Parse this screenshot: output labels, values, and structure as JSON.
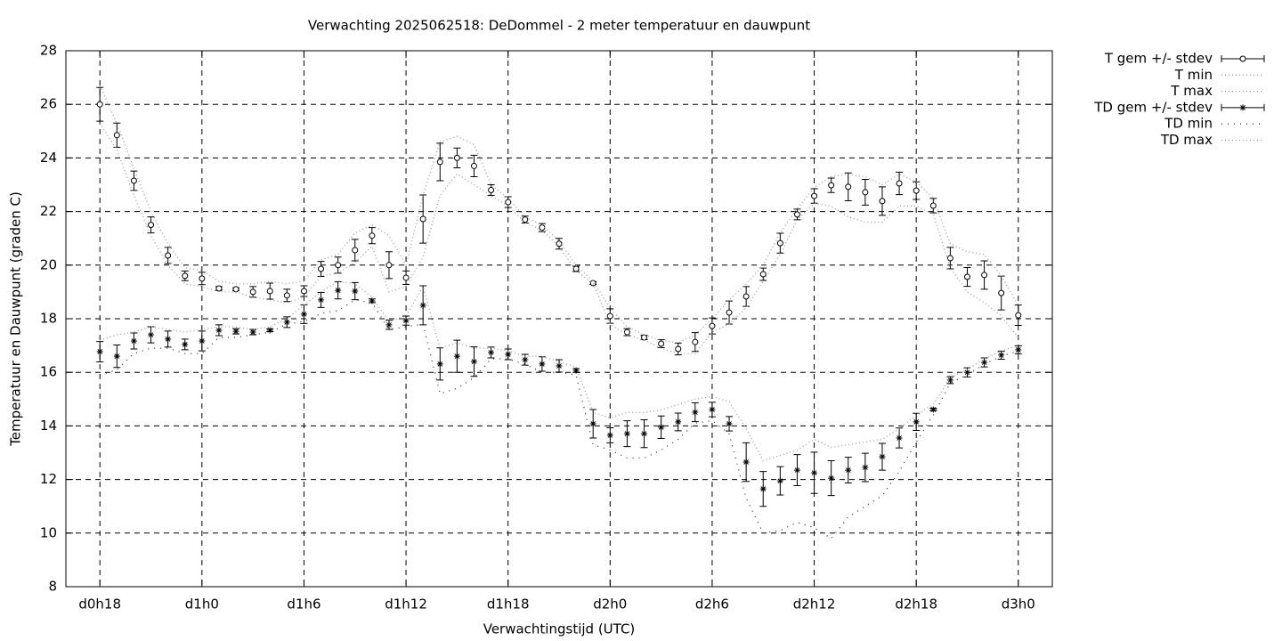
{
  "chart_data": {
    "type": "errorbar_line",
    "title": "Verwachting 2025062518: DeDommel - 2 meter temperatuur en dauwpunt",
    "xlabel": "Verwachtingstijd (UTC)",
    "ylabel": "Temperatuur en Dauwpunt (graden C)",
    "x": [
      18,
      19,
      20,
      21,
      22,
      23,
      24,
      25,
      26,
      27,
      28,
      29,
      30,
      31,
      32,
      33,
      34,
      35,
      36,
      37,
      38,
      39,
      40,
      41,
      42,
      43,
      44,
      45,
      46,
      47,
      48,
      49,
      50,
      51,
      52,
      53,
      54,
      55,
      56,
      57,
      58,
      59,
      60,
      61,
      62,
      63,
      64,
      65,
      66,
      67,
      68,
      69,
      70,
      71,
      72
    ],
    "xlim": [
      16,
      74
    ],
    "xticks": [
      {
        "value": 18,
        "label": "d0h18"
      },
      {
        "value": 24,
        "label": "d1h0"
      },
      {
        "value": 30,
        "label": "d1h6"
      },
      {
        "value": 36,
        "label": "d1h12"
      },
      {
        "value": 42,
        "label": "d1h18"
      },
      {
        "value": 48,
        "label": "d2h0"
      },
      {
        "value": 54,
        "label": "d2h6"
      },
      {
        "value": 60,
        "label": "d2h12"
      },
      {
        "value": 66,
        "label": "d2h18"
      },
      {
        "value": 72,
        "label": "d3h0"
      }
    ],
    "ylim": [
      8,
      28
    ],
    "yticks": [
      8,
      10,
      12,
      14,
      16,
      18,
      20,
      22,
      24,
      26,
      28
    ],
    "grid": true,
    "legend": "outside-right",
    "series": [
      {
        "name": "T gem +/- stdev",
        "color": "#000000",
        "marker": "circle",
        "values": [
          26.0,
          24.85,
          23.15,
          21.5,
          20.36,
          19.6,
          19.5,
          19.13,
          19.1,
          19.0,
          19.03,
          18.87,
          19.03,
          19.86,
          20.0,
          20.56,
          21.1,
          20.0,
          19.53,
          21.72,
          23.85,
          24.0,
          23.7,
          22.8,
          22.35,
          21.7,
          21.4,
          20.8,
          19.86,
          19.33,
          18.1,
          17.5,
          17.3,
          17.07,
          16.87,
          17.13,
          17.73,
          18.23,
          18.83,
          19.66,
          20.82,
          21.89,
          22.58,
          22.98,
          22.92,
          22.72,
          22.39,
          23.05,
          22.78,
          22.22,
          20.26,
          19.56,
          19.63,
          18.96,
          18.13
        ],
        "errors": [
          0.63,
          0.45,
          0.36,
          0.3,
          0.3,
          0.18,
          0.23,
          0.07,
          0.05,
          0.2,
          0.3,
          0.23,
          0.2,
          0.28,
          0.3,
          0.4,
          0.3,
          0.5,
          0.25,
          0.9,
          0.7,
          0.37,
          0.4,
          0.2,
          0.2,
          0.13,
          0.15,
          0.2,
          0.1,
          0.05,
          0.27,
          0.13,
          0.08,
          0.15,
          0.22,
          0.35,
          0.3,
          0.43,
          0.37,
          0.23,
          0.37,
          0.2,
          0.27,
          0.27,
          0.52,
          0.48,
          0.53,
          0.42,
          0.33,
          0.27,
          0.4,
          0.35,
          0.53,
          0.63,
          0.38
        ]
      },
      {
        "name": "T min",
        "color": "#999999",
        "dash": "1,3",
        "values": [
          25.3,
          24.3,
          22.6,
          21.1,
          20.0,
          19.3,
          19.2,
          19.0,
          19.0,
          18.8,
          18.7,
          18.6,
          18.8,
          19.6,
          19.7,
          20.1,
          20.7,
          19.0,
          19.2,
          20.3,
          22.6,
          23.4,
          23.0,
          22.6,
          22.2,
          21.6,
          21.3,
          20.7,
          19.8,
          19.3,
          17.8,
          17.4,
          17.2,
          16.9,
          16.7,
          16.7,
          17.5,
          17.8,
          18.4,
          19.4,
          20.4,
          21.7,
          22.3,
          22.2,
          21.8,
          21.6,
          21.6,
          22.2,
          22.2,
          21.9,
          19.9,
          19.0,
          18.6,
          18.1,
          17.3
        ]
      },
      {
        "name": "T max",
        "color": "#999999",
        "dash": "1,3",
        "values": [
          26.7,
          25.3,
          23.6,
          22.0,
          20.8,
          19.9,
          19.8,
          19.4,
          19.3,
          19.3,
          19.4,
          19.3,
          19.4,
          20.2,
          20.4,
          21.2,
          21.5,
          21.1,
          20.0,
          22.6,
          24.6,
          24.8,
          24.5,
          23.0,
          22.5,
          21.8,
          21.5,
          20.9,
          20.0,
          19.4,
          18.4,
          17.7,
          17.4,
          17.2,
          17.1,
          17.4,
          18.0,
          18.7,
          19.3,
          20.0,
          21.2,
          22.1,
          22.9,
          23.3,
          23.4,
          23.3,
          23.0,
          23.4,
          23.1,
          22.5,
          20.8,
          20.5,
          20.4,
          19.6,
          18.5
        ]
      },
      {
        "name": "TD gem +/- stdev",
        "color": "#000000",
        "marker": "star",
        "values": [
          16.77,
          16.6,
          17.17,
          17.4,
          17.24,
          17.04,
          17.17,
          17.57,
          17.53,
          17.5,
          17.57,
          17.87,
          18.17,
          18.7,
          19.06,
          19.03,
          18.67,
          17.77,
          17.93,
          18.5,
          16.31,
          16.6,
          16.4,
          16.74,
          16.67,
          16.47,
          16.31,
          16.24,
          16.07,
          14.08,
          13.65,
          13.71,
          13.71,
          13.95,
          14.15,
          14.51,
          14.61,
          14.08,
          12.65,
          11.65,
          11.95,
          12.35,
          12.25,
          12.05,
          12.35,
          12.45,
          12.85,
          13.55,
          14.15,
          14.61,
          15.71,
          16.0,
          16.37,
          16.64,
          16.84
        ],
        "errors": [
          0.38,
          0.42,
          0.3,
          0.3,
          0.3,
          0.2,
          0.37,
          0.2,
          0.1,
          0.1,
          0.05,
          0.2,
          0.35,
          0.28,
          0.32,
          0.32,
          0.07,
          0.17,
          0.17,
          0.73,
          0.6,
          0.6,
          0.55,
          0.2,
          0.2,
          0.2,
          0.27,
          0.23,
          0.07,
          0.53,
          0.28,
          0.48,
          0.52,
          0.42,
          0.33,
          0.35,
          0.27,
          0.27,
          0.72,
          0.65,
          0.53,
          0.58,
          0.77,
          0.65,
          0.48,
          0.53,
          0.5,
          0.37,
          0.32,
          0.05,
          0.13,
          0.17,
          0.17,
          0.15,
          0.15
        ]
      },
      {
        "name": "TD min",
        "color": "#333333",
        "dash": "1,6",
        "values": [
          15.9,
          16.1,
          16.7,
          16.9,
          16.9,
          16.7,
          16.7,
          17.3,
          17.3,
          17.4,
          17.5,
          17.8,
          17.9,
          18.2,
          18.3,
          18.7,
          18.6,
          17.6,
          17.7,
          17.8,
          15.2,
          15.4,
          15.8,
          16.5,
          16.5,
          16.3,
          16.0,
          16.0,
          15.9,
          13.3,
          13.1,
          12.8,
          12.8,
          13.1,
          13.5,
          14.1,
          14.2,
          13.7,
          11.3,
          10.0,
          10.1,
          10.4,
          10.2,
          9.8,
          10.6,
          11.0,
          11.4,
          12.3,
          13.4,
          14.4,
          15.6,
          15.9,
          16.3,
          16.6,
          16.8
        ]
      },
      {
        "name": "TD max",
        "color": "#999999",
        "dash": "1,3",
        "values": [
          17.2,
          17.4,
          17.5,
          17.7,
          17.6,
          17.5,
          17.6,
          17.7,
          17.7,
          17.6,
          17.7,
          18.0,
          18.5,
          19.0,
          19.4,
          19.3,
          18.8,
          17.9,
          18.1,
          19.2,
          16.9,
          17.1,
          16.9,
          16.9,
          16.8,
          16.6,
          16.6,
          16.4,
          16.2,
          14.5,
          14.3,
          14.5,
          14.5,
          14.6,
          14.8,
          15.0,
          15.1,
          14.9,
          13.9,
          12.7,
          12.9,
          13.1,
          13.5,
          13.2,
          13.3,
          13.4,
          13.5,
          13.9,
          14.4,
          14.8,
          15.8,
          16.1,
          16.5,
          16.8,
          17.0
        ]
      }
    ]
  }
}
